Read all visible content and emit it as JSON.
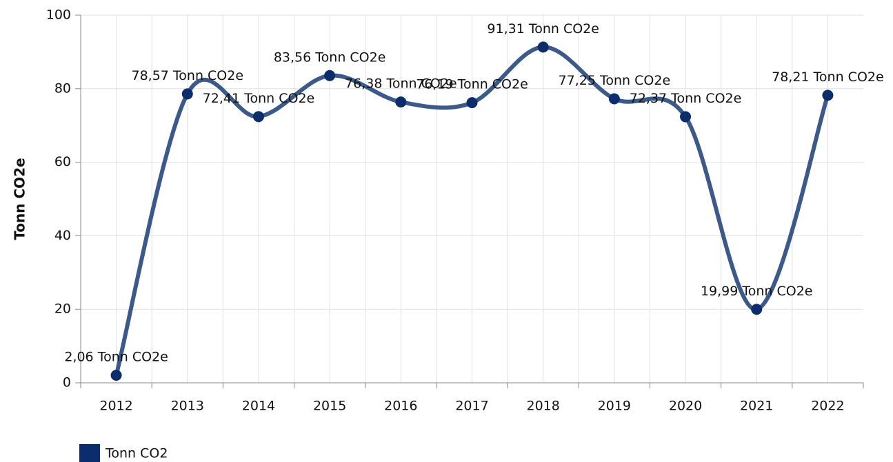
{
  "chart_data": {
    "type": "line",
    "y_label": "Tonn CO2e",
    "categories": [
      "2012",
      "2013",
      "2014",
      "2015",
      "2016",
      "2017",
      "2018",
      "2019",
      "2020",
      "2021",
      "2022"
    ],
    "series": [
      {
        "name": "Tonn CO2",
        "color": "#0c2d6b",
        "line_color": "#3b5a8a",
        "values": [
          2.06,
          78.57,
          72.41,
          83.56,
          76.38,
          76.19,
          91.31,
          77.25,
          72.37,
          19.99,
          78.21
        ],
        "value_labels": [
          "2,06 Tonn CO2e",
          "78,57 Tonn CO2e",
          "72,41 Tonn CO2e",
          "83,56 Tonn CO2e",
          "76,38 Tonn CO2e",
          "76,19 Tonn CO2e",
          "91,31 Tonn CO2e",
          "77,25 Tonn CO2e",
          "72,37 Tonn CO2e",
          "19,99 Tonn CO2e",
          "78,21 Tonn CO2e"
        ]
      }
    ],
    "ylim": [
      0,
      100
    ],
    "yticks": [
      0,
      20,
      40,
      60,
      80,
      100
    ],
    "grid": true,
    "smooth": true,
    "legend": "bottom-left"
  }
}
